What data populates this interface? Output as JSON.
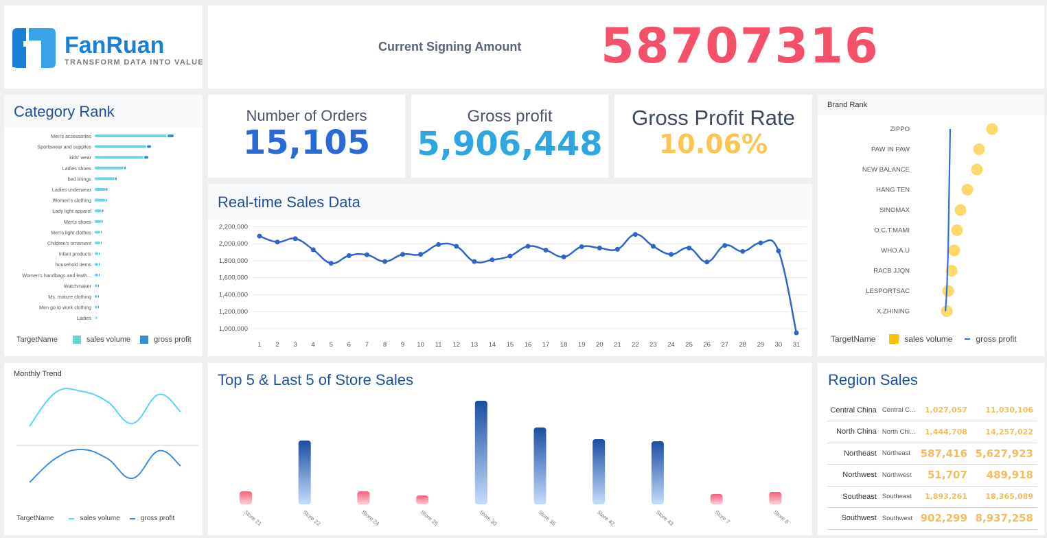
{
  "logo": {
    "brand": "FanRuan",
    "tagline": "TRANSFORM DATA INTO VALUE"
  },
  "header": {
    "label": "Current Signing Amount",
    "value": "58707316"
  },
  "kpis": [
    {
      "label": "Number of Orders",
      "value": "15,105",
      "color": "#2a6ad6"
    },
    {
      "label": "Gross profit",
      "value": "5,906,448",
      "color": "#2fa6e0"
    },
    {
      "label": "Gross Profit Rate",
      "value": "10.06%",
      "color": "#fcc452"
    }
  ],
  "colors": {
    "title": "#1f4f9c",
    "accent_red": "#f4506a",
    "sales": "#6dd3df",
    "profit": "#3a8cd0"
  },
  "chart_data": [
    {
      "id": "category_rank",
      "type": "bar",
      "title": "Category Rank",
      "orientation": "horizontal",
      "stacked": true,
      "categories": [
        "Men's accessories",
        "Sportswear and supplies",
        "kids' wear",
        "Ladies shoes",
        "bed linings",
        "Ladies underwear",
        "Women's clothing",
        "Lady light apparel",
        "Men's shoes",
        "Men's light clothes",
        "Children's ornament",
        "infant products",
        "household items",
        "Women's handbags and leath...",
        "Watchmaker",
        "Ms. mature clothing",
        "Men go to work clothing",
        "Ladies"
      ],
      "series": [
        {
          "name": "sales volume",
          "values": [
            105,
            75,
            71,
            42,
            29,
            16,
            15,
            10,
            9,
            8,
            8,
            5,
            5,
            5,
            4,
            4,
            4,
            1
          ]
        },
        {
          "name": "gross profit",
          "values": [
            9,
            6,
            6,
            2,
            2,
            1.5,
            1.5,
            1.5,
            1.5,
            1,
            1,
            1,
            1,
            1,
            1,
            1,
            1,
            0.5
          ]
        }
      ],
      "legend": {
        "title": "TargetName",
        "position": "bottom"
      }
    },
    {
      "id": "realtime_sales",
      "type": "line",
      "title": "Real-time Sales Data",
      "x": [
        1,
        2,
        3,
        4,
        5,
        6,
        7,
        8,
        9,
        10,
        11,
        12,
        13,
        14,
        15,
        16,
        17,
        18,
        19,
        20,
        21,
        22,
        23,
        24,
        25,
        26,
        27,
        28,
        29,
        30,
        31
      ],
      "values": [
        2090000,
        2020000,
        2060000,
        1930000,
        1770000,
        1860000,
        1870000,
        1790000,
        1875000,
        1875000,
        1990000,
        1970000,
        1790000,
        1810000,
        1855000,
        1970000,
        1925000,
        1845000,
        1965000,
        1950000,
        1935000,
        2110000,
        1970000,
        1875000,
        1950000,
        1785000,
        1980000,
        1910000,
        2010000,
        1915000,
        950000
      ],
      "yticks": [
        "1,000,000",
        "1,200,000",
        "1,400,000",
        "1,600,000",
        "1,800,000",
        "2,000,000",
        "2,200,000"
      ],
      "ylim": [
        950000,
        2220000
      ],
      "grid": true
    },
    {
      "id": "brand_rank",
      "type": "scatter",
      "title": "Brand Rank",
      "categories": [
        "ZIPPO",
        "PAW IN PAW",
        "NEW BALANCE",
        "HANG TEN",
        "SINOMAX",
        "O.C.T.MAMI",
        "WHO.A.U",
        "RACB JJQN",
        "LESPORTSAC",
        "X.ZHINING"
      ],
      "series": [
        {
          "name": "sales volume",
          "values": [
            73,
            54,
            51,
            37,
            27,
            22,
            18,
            14,
            9,
            7
          ]
        },
        {
          "name": "gross profit",
          "values": [
            12,
            11.5,
            11,
            10.5,
            10,
            9.5,
            9,
            8,
            7,
            5
          ]
        }
      ],
      "legend": {
        "title": "TargetName",
        "position": "bottom"
      }
    },
    {
      "id": "monthly_trend",
      "type": "line",
      "title": "Monthly Trend",
      "series": [
        {
          "name": "sales volume",
          "values": [
            19,
            68,
            70,
            55,
            23,
            65,
            40
          ]
        },
        {
          "name": "gross profit",
          "values": [
            17,
            52,
            65,
            52,
            23,
            63,
            41
          ]
        }
      ],
      "legend": {
        "title": "TargetName",
        "position": "bottom"
      }
    },
    {
      "id": "store_sales",
      "type": "bar",
      "title": "Top 5 & Last 5 of Store Sales",
      "categories": [
        "Store 21",
        "Store 22",
        "Store 24",
        "Store 25",
        "Store 30",
        "Store 35",
        "Store 42",
        "Store 43",
        "Store 7",
        "Store 8"
      ],
      "values": [
        19,
        93,
        19,
        13,
        151,
        112,
        95,
        92,
        15,
        18
      ],
      "groups": [
        "last",
        "top",
        "last",
        "last",
        "top",
        "top",
        "top",
        "top",
        "last",
        "last"
      ]
    }
  ],
  "region": {
    "title": "Region Sales",
    "rows": [
      {
        "name": "Central China",
        "short": "Central C...",
        "a": "1,027,057",
        "b": "11,030,106"
      },
      {
        "name": "North China",
        "short": "North Chi...",
        "a": "1,444,708",
        "b": "14,257,022"
      },
      {
        "name": "Northeast",
        "short": "Northeast",
        "a": "587,416",
        "b": "5,627,923"
      },
      {
        "name": "Northwest",
        "short": "Northwest",
        "a": "51,707",
        "b": "489,918"
      },
      {
        "name": "Southeast",
        "short": "Southeast",
        "a": "1,893,261",
        "b": "18,365,089"
      },
      {
        "name": "Southwest",
        "short": "Southwest",
        "a": "902,299",
        "b": "8,937,258"
      }
    ]
  }
}
